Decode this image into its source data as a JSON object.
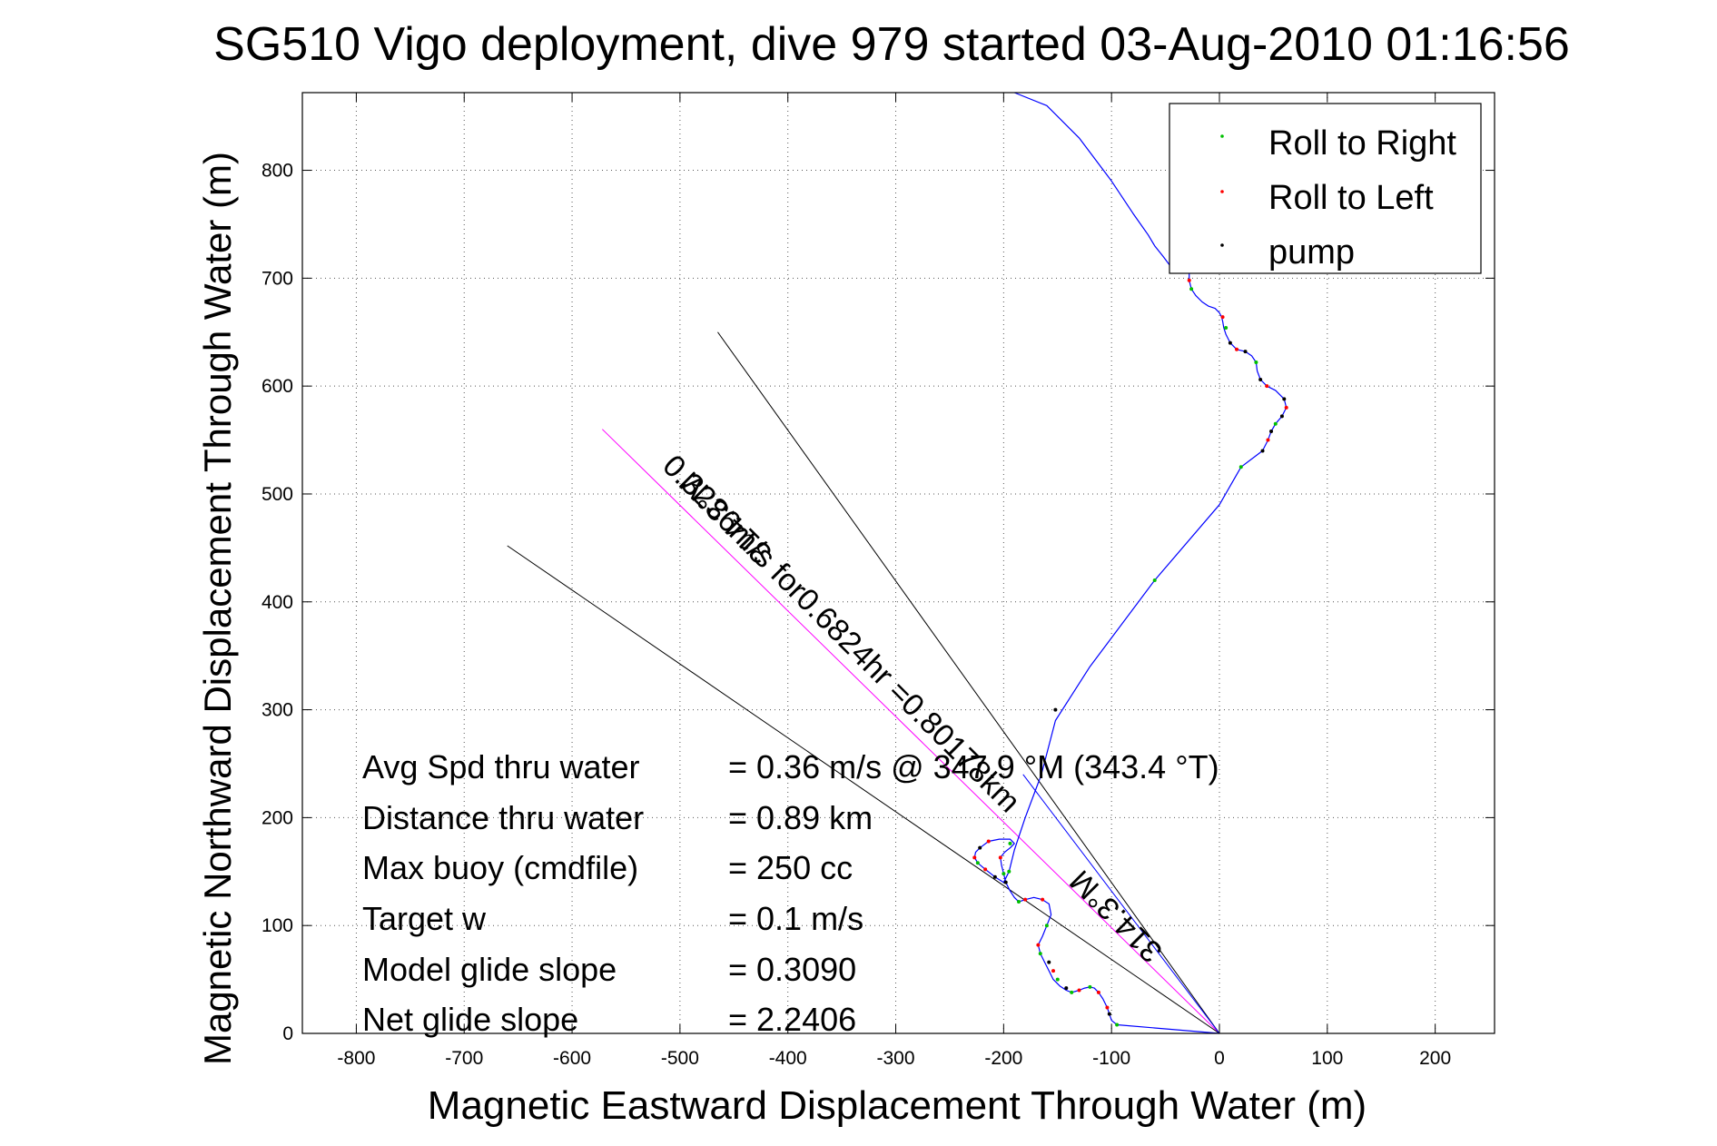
{
  "chart_data": {
    "type": "line",
    "title": "SG510 Vigo deployment, dive 979 started 03-Aug-2010 01:16:56",
    "xlabel": "Magnetic Eastward Displacement Through Water (m)",
    "ylabel": "Magnetic Northward Displacement Through Water (m)",
    "xlim": [
      -850,
      255
    ],
    "ylim": [
      0,
      872
    ],
    "grid": true,
    "legend_position": "top-right",
    "x_ticks": [
      -800,
      -700,
      -600,
      -500,
      -400,
      -300,
      -200,
      -100,
      0,
      100,
      200
    ],
    "y_ticks": [
      0,
      100,
      200,
      300,
      400,
      500,
      600,
      700,
      800
    ],
    "series": [
      {
        "name": "track",
        "color": "#0000ff",
        "x": [
          0,
          -95,
          -100,
          -102,
          -104,
          -108,
          -112,
          -116,
          -120,
          -125,
          -130,
          -137,
          -142,
          -148,
          -154,
          -158,
          -162,
          -166,
          -168,
          -164,
          -160,
          -156,
          -158,
          -164,
          -172,
          -180,
          -186,
          -190,
          -194,
          -198,
          -200,
          -202,
          -203,
          -199,
          -194,
          -190,
          -194,
          -204,
          -214,
          -222,
          -226,
          -227,
          -224,
          -217,
          -208,
          -200,
          -195,
          -190,
          -180,
          -165,
          -152,
          -120,
          -60,
          0,
          20,
          40,
          45,
          48,
          52,
          58,
          62,
          60,
          52,
          44,
          38,
          35,
          34,
          30,
          24,
          16,
          10,
          6,
          4,
          3,
          2,
          0,
          -4,
          -10,
          -16,
          -22,
          -26,
          -28,
          -28,
          -30,
          -32,
          -34,
          -36,
          -40,
          -46,
          -52,
          -60,
          -66,
          -80,
          -100,
          -130,
          -160,
          -190
        ],
        "y": [
          0,
          8,
          12,
          18,
          24,
          32,
          38,
          42,
          43,
          42,
          40,
          38,
          40,
          44,
          50,
          58,
          66,
          74,
          82,
          90,
          100,
          110,
          120,
          124,
          126,
          124,
          122,
          126,
          132,
          140,
          148,
          156,
          163,
          168,
          172,
          176,
          180,
          180,
          178,
          172,
          168,
          163,
          158,
          152,
          145,
          140,
          150,
          170,
          200,
          240,
          290,
          340,
          420,
          490,
          525,
          540,
          550,
          558,
          565,
          572,
          580,
          588,
          596,
          600,
          606,
          614,
          622,
          628,
          632,
          634,
          640,
          648,
          654,
          660,
          664,
          668,
          672,
          674,
          678,
          684,
          690,
          698,
          706,
          710,
          712,
          712,
          710,
          708,
          712,
          720,
          730,
          740,
          760,
          790,
          830,
          860,
          872
        ]
      },
      {
        "name": "Roll to Right",
        "color": "#00c000",
        "marker": "dot",
        "x": [
          -95,
          -120,
          -137,
          -150,
          -166,
          -160,
          -186,
          -200,
          -194,
          -224,
          -195,
          -60,
          20,
          52,
          34,
          6,
          -26,
          -40
        ],
        "y": [
          8,
          43,
          38,
          50,
          74,
          100,
          122,
          148,
          176,
          158,
          150,
          420,
          525,
          565,
          622,
          654,
          690,
          708
        ]
      },
      {
        "name": "Roll to Left",
        "color": "#ff0000",
        "marker": "dot",
        "x": [
          -104,
          -112,
          -130,
          -154,
          -168,
          -164,
          -180,
          -203,
          -214,
          -227,
          -217,
          45,
          62,
          44,
          16,
          3,
          -28,
          -32
        ],
        "y": [
          24,
          38,
          40,
          58,
          82,
          124,
          124,
          163,
          178,
          163,
          152,
          550,
          580,
          600,
          634,
          664,
          698,
          712
        ]
      },
      {
        "name": "pump",
        "color": "#000000",
        "marker": "dot",
        "x": [
          -102,
          -142,
          -158,
          -198,
          -222,
          -208,
          -152,
          40,
          48,
          58,
          60,
          38,
          24,
          10,
          -28,
          -36
        ],
        "y": [
          18,
          42,
          66,
          140,
          172,
          145,
          300,
          540,
          558,
          572,
          588,
          606,
          632,
          640,
          706,
          710
        ]
      }
    ],
    "heading_lines": [
      {
        "name": "depth-averaged-current",
        "color": "#ff00ff",
        "from": [
          0,
          0
        ],
        "to": [
          -572,
          560
        ]
      },
      {
        "name": "upper-bound",
        "color": "#000000",
        "from": [
          0,
          0
        ],
        "to": [
          -465,
          650
        ]
      },
      {
        "name": "lower-bound",
        "color": "#000000",
        "from": [
          0,
          0
        ],
        "to": [
          -660,
          452
        ]
      },
      {
        "name": "upper-bound-blue",
        "color": "#0000ff",
        "from": [
          0,
          0
        ],
        "to": [
          -182,
          240
        ]
      }
    ],
    "annotations": [
      {
        "text": "0.3236m/s for0.6824hr =0.80178km",
        "color": "#000000"
      },
      {
        "text": "314.3°M",
        "color": "#000000"
      },
      {
        "text": "314.3°M",
        "color": "#000000"
      }
    ]
  },
  "legend": {
    "items": [
      {
        "label": "Roll to Right",
        "color": "#00c000"
      },
      {
        "label": "Roll to Left",
        "color": "#ff0000"
      },
      {
        "label": "pump",
        "color": "#000000"
      }
    ]
  },
  "stats": [
    {
      "label": "Avg Spd thru water",
      "value": "=  0.36 m/s @ 347.9 °M (343.4 °T)"
    },
    {
      "label": "Distance thru water",
      "value": "=  0.89 km"
    },
    {
      "label": "Max buoy (cmdfile)",
      "value": "= 250 cc"
    },
    {
      "label": "Target w",
      "value": "= 0.1 m/s"
    },
    {
      "label": "Model glide slope",
      "value": "= 0.3090"
    },
    {
      "label": "Net glide slope",
      "value": "= 2.2406"
    }
  ]
}
